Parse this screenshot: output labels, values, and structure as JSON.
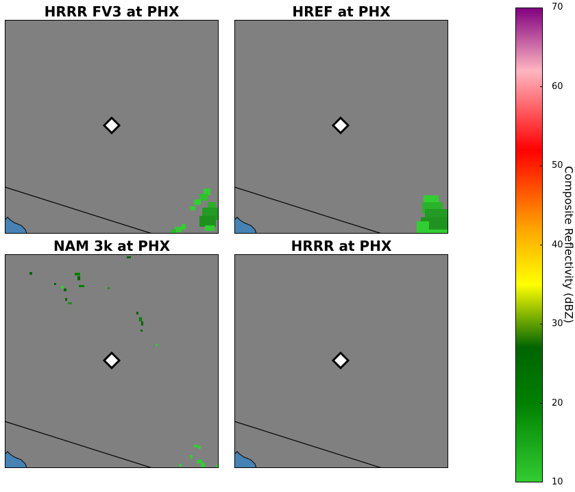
{
  "panels": [
    {
      "id": "hrrr-fv3",
      "title": "HRRR FV3 at PHX"
    },
    {
      "id": "href",
      "title": "HREF at PHX"
    },
    {
      "id": "nam3k",
      "title": "NAM 3k at PHX"
    },
    {
      "id": "hrrr",
      "title": "HRRR at PHX"
    }
  ],
  "colorbar": {
    "label": "Composite Reflectivity (dBZ)",
    "min": 10,
    "max": 70,
    "ticks": [
      "10",
      "20",
      "30",
      "40",
      "50",
      "60",
      "70"
    ],
    "stops": [
      {
        "value": 10,
        "color": "#32cd32"
      },
      {
        "value": 20,
        "color": "#008000"
      },
      {
        "value": 27,
        "color": "#006400"
      },
      {
        "value": 35,
        "color": "#ffff00"
      },
      {
        "value": 42,
        "color": "#ffa500"
      },
      {
        "value": 52,
        "color": "#ff0000"
      },
      {
        "value": 62,
        "color": "#ffb6c1"
      },
      {
        "value": 70,
        "color": "#800080"
      }
    ]
  },
  "colors": {
    "map_background": "#808080",
    "water": "#4682b4",
    "border_line": "#000000",
    "station_marker_fill": "#ffffff",
    "station_marker_stroke": "#000000"
  },
  "station": "PHX"
}
